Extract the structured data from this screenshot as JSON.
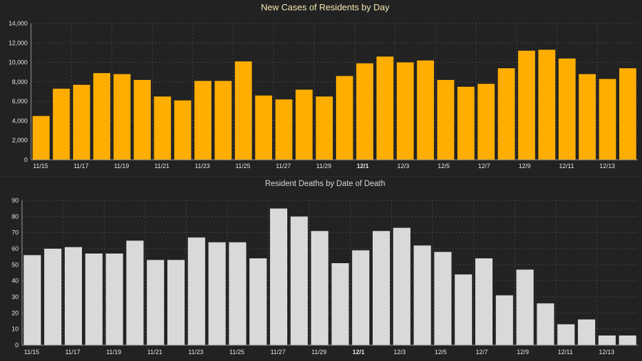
{
  "chart_data": [
    {
      "type": "bar",
      "title": "New Cases of Residents by Day",
      "xlabel": "",
      "ylabel": "",
      "color": "#ffae00",
      "ylim": [
        0,
        14000
      ],
      "yticks": [
        "0",
        "2,000",
        "4,000",
        "6,000",
        "8,000",
        "10,000",
        "12,000",
        "14,000"
      ],
      "xticks": [
        "11/15",
        "11/17",
        "11/19",
        "11/21",
        "11/23",
        "11/25",
        "11/27",
        "11/29",
        "12/1",
        "12/3",
        "12/5",
        "12/7",
        "12/9",
        "12/11",
        "12/13"
      ],
      "bold_xtick": "12/1",
      "grid": true,
      "dates": [
        "11/15",
        "11/16",
        "11/17",
        "11/18",
        "11/19",
        "11/20",
        "11/21",
        "11/22",
        "11/23",
        "11/24",
        "11/25",
        "11/26",
        "11/27",
        "11/28",
        "11/29",
        "11/30",
        "12/1",
        "12/2",
        "12/3",
        "12/4",
        "12/5",
        "12/6",
        "12/7",
        "12/8",
        "12/9",
        "12/10",
        "12/11",
        "12/12",
        "12/13",
        "12/14"
      ],
      "values": [
        4500,
        7300,
        7700,
        8900,
        8800,
        8200,
        6500,
        6100,
        8100,
        8100,
        10100,
        6600,
        6200,
        7200,
        6500,
        8600,
        9900,
        10600,
        10000,
        10200,
        8200,
        7500,
        7800,
        9400,
        11200,
        11300,
        10400,
        8800,
        8300,
        9400
      ]
    },
    {
      "type": "bar",
      "title": "Resident Deaths by Date of Death",
      "xlabel": "",
      "ylabel": "",
      "color": "#d9d9d9",
      "ylim": [
        0,
        90
      ],
      "yticks": [
        "0",
        "10",
        "20",
        "30",
        "40",
        "50",
        "60",
        "70",
        "80",
        "90"
      ],
      "xticks": [
        "11/15",
        "11/17",
        "11/19",
        "11/21",
        "11/23",
        "11/25",
        "11/27",
        "11/29",
        "12/1",
        "12/3",
        "12/5",
        "12/7",
        "12/9",
        "12/11",
        "12/13"
      ],
      "bold_xtick": "12/1",
      "grid": true,
      "dates": [
        "11/15",
        "11/16",
        "11/17",
        "11/18",
        "11/19",
        "11/20",
        "11/21",
        "11/22",
        "11/23",
        "11/24",
        "11/25",
        "11/26",
        "11/27",
        "11/28",
        "11/29",
        "11/30",
        "12/1",
        "12/2",
        "12/3",
        "12/4",
        "12/5",
        "12/6",
        "12/7",
        "12/8",
        "12/9",
        "12/10",
        "12/11",
        "12/12",
        "12/13",
        "12/14"
      ],
      "values": [
        56,
        60,
        61,
        57,
        57,
        65,
        53,
        53,
        67,
        64,
        64,
        54,
        85,
        80,
        71,
        51,
        59,
        71,
        73,
        62,
        58,
        44,
        54,
        31,
        47,
        26,
        13,
        16,
        6,
        6
      ]
    }
  ]
}
